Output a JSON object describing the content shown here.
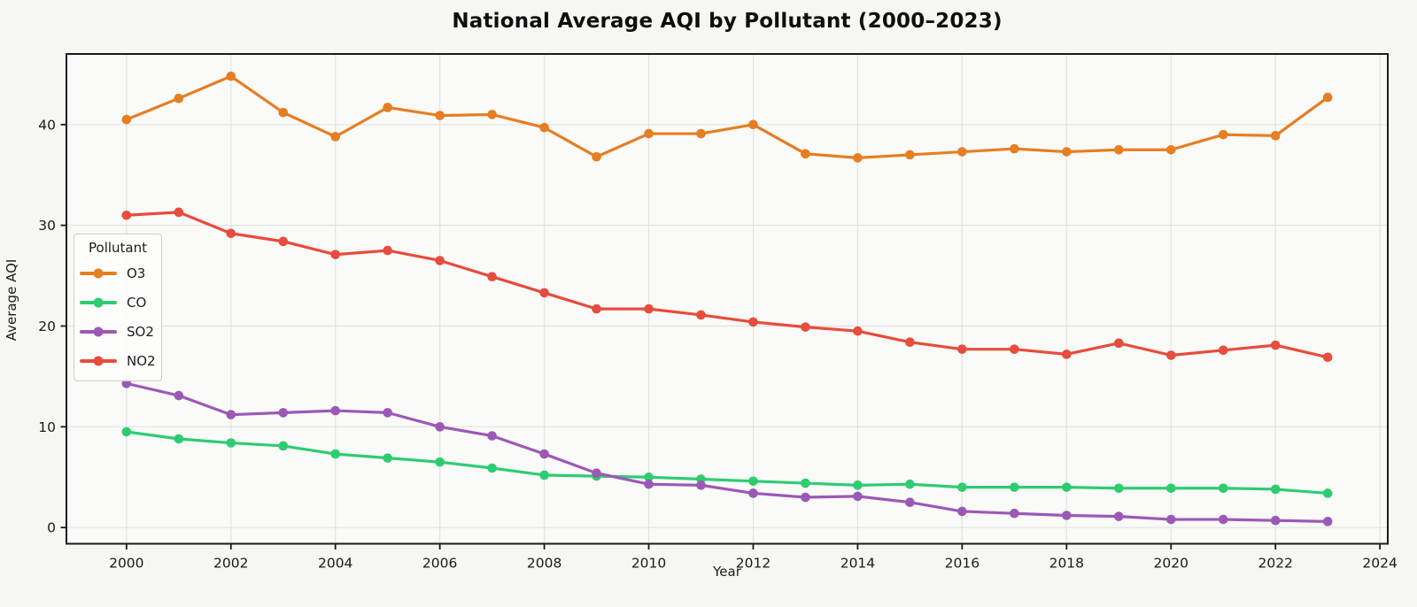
{
  "chart_data": {
    "type": "line",
    "title": "National Average AQI by Pollutant (2000–2023)",
    "xlabel": "Year",
    "ylabel": "Average AQI",
    "legend_title": "Pollutant",
    "legend_position": "center left",
    "grid": true,
    "x": [
      2000,
      2001,
      2002,
      2003,
      2004,
      2005,
      2006,
      2007,
      2008,
      2009,
      2010,
      2011,
      2012,
      2013,
      2014,
      2015,
      2016,
      2017,
      2018,
      2019,
      2020,
      2021,
      2022,
      2023
    ],
    "series": [
      {
        "name": "O3",
        "color": "#E67E22",
        "values": [
          40.5,
          42.6,
          44.8,
          41.2,
          38.8,
          41.7,
          40.9,
          41.0,
          39.7,
          36.8,
          39.1,
          39.1,
          40.0,
          37.1,
          36.7,
          37.0,
          37.3,
          37.6,
          37.3,
          37.5,
          37.5,
          39.0,
          38.9,
          42.7
        ]
      },
      {
        "name": "CO",
        "color": "#2ECC71",
        "values": [
          9.5,
          8.8,
          8.4,
          8.1,
          7.3,
          6.9,
          6.5,
          5.9,
          5.2,
          5.1,
          5.0,
          4.8,
          4.6,
          4.4,
          4.2,
          4.3,
          4.0,
          4.0,
          4.0,
          3.9,
          3.9,
          3.9,
          3.8,
          3.4
        ]
      },
      {
        "name": "SO2",
        "color": "#9B59B6",
        "values": [
          14.3,
          13.1,
          11.2,
          11.4,
          11.6,
          11.4,
          10.0,
          9.1,
          7.3,
          5.4,
          4.3,
          4.2,
          3.4,
          3.0,
          3.1,
          2.5,
          1.6,
          1.4,
          1.2,
          1.1,
          0.8,
          0.8,
          0.7,
          0.6
        ]
      },
      {
        "name": "NO2",
        "color": "#E74C3C",
        "values": [
          31.0,
          31.3,
          29.2,
          28.4,
          27.1,
          27.5,
          26.5,
          24.9,
          23.3,
          21.7,
          21.7,
          21.1,
          20.4,
          19.9,
          19.5,
          18.4,
          17.7,
          17.7,
          17.2,
          18.3,
          17.1,
          17.6,
          18.1,
          16.9
        ]
      }
    ],
    "xticks": [
      2000,
      2002,
      2004,
      2006,
      2008,
      2010,
      2012,
      2014,
      2016,
      2018,
      2020,
      2022,
      2024
    ],
    "yticks": [
      0,
      10,
      20,
      30,
      40
    ],
    "xlim": [
      1998.85,
      2024.15
    ],
    "ylim": [
      -1.61,
      47.01
    ],
    "colors": {
      "figure_bg": "#f6f6f3",
      "plot_bg": "#fafaf8",
      "grid": "#e3e3e0",
      "spine": "#1a1a1a",
      "tick_text": "#1a1a1a"
    }
  }
}
